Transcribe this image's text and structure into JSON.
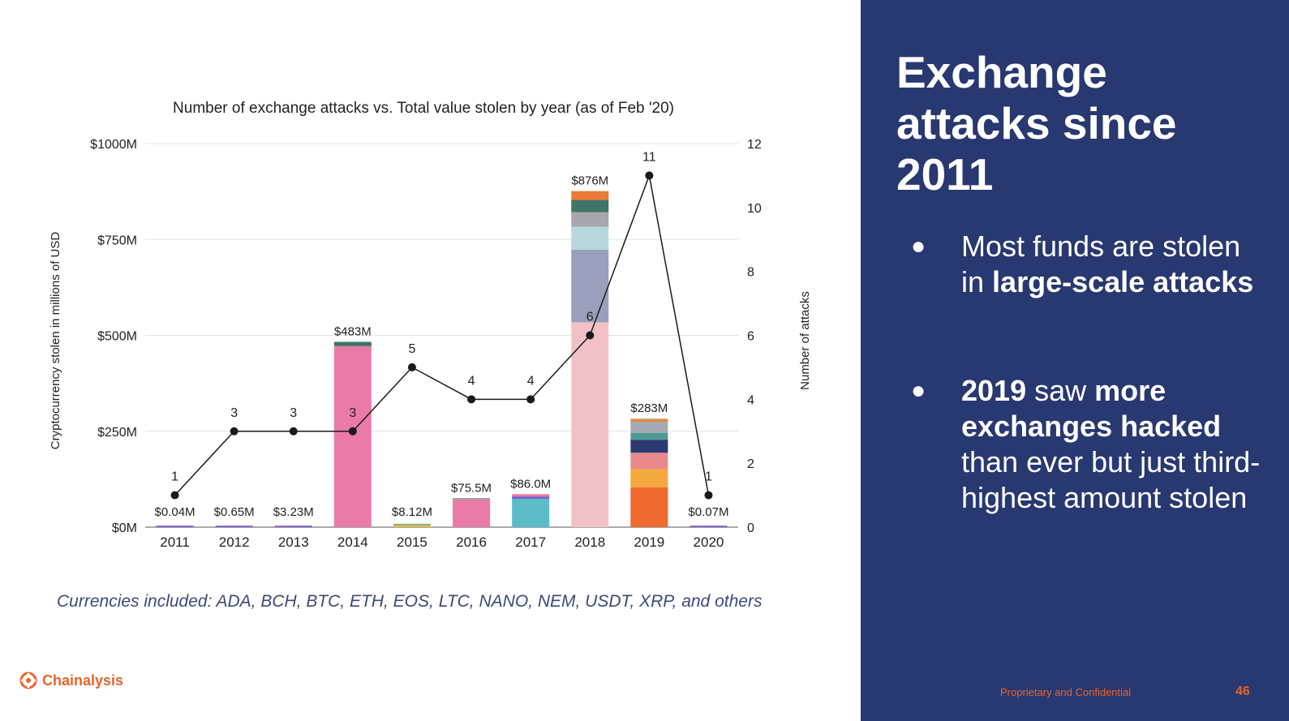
{
  "chart_data": {
    "type": "bar+line",
    "title": "Number of exchange attacks vs. Total value stolen by year (as of Feb '20)",
    "categories": [
      "2011",
      "2012",
      "2013",
      "2014",
      "2015",
      "2016",
      "2017",
      "2018",
      "2019",
      "2020"
    ],
    "left_axis": {
      "label": "Cryptocurrency stolen in millions of USD",
      "range": [
        0,
        1000
      ],
      "ticks": [
        {
          "value": 0,
          "label": "$0M"
        },
        {
          "value": 250,
          "label": "$250M"
        },
        {
          "value": 500,
          "label": "$500M"
        },
        {
          "value": 750,
          "label": "$750M"
        },
        {
          "value": 1000,
          "label": "$1000M"
        }
      ]
    },
    "right_axis": {
      "label": "Number of attacks",
      "range": [
        0,
        12
      ],
      "ticks": [
        0,
        2,
        4,
        6,
        8,
        10,
        12
      ]
    },
    "bar_labels": [
      "$0.04M",
      "$0.65M",
      "$3.23M",
      "$483M",
      "$8.12M",
      "$75.5M",
      "$86.0M",
      "$876M",
      "$283M",
      "$0.07M"
    ],
    "stacks": [
      [
        {
          "value": 0.04,
          "color": "#7a5cc4"
        }
      ],
      [
        {
          "value": 0.65,
          "color": "#7a5cc4"
        }
      ],
      [
        {
          "value": 3.23,
          "color": "#7a5cc4"
        }
      ],
      [
        {
          "value": 472,
          "color": "#ea7aa8"
        },
        {
          "value": 11,
          "color": "#3e7566"
        }
      ],
      [
        {
          "value": 5,
          "color": "#e6b84a"
        },
        {
          "value": 3.12,
          "color": "#7fb07a"
        }
      ],
      [
        {
          "value": 72,
          "color": "#ea7aa8"
        },
        {
          "value": 3.5,
          "color": "#9a9aa0"
        }
      ],
      [
        {
          "value": 74,
          "color": "#5bbcc8"
        },
        {
          "value": 6,
          "color": "#7a5cc4"
        },
        {
          "value": 6,
          "color": "#ea7aa8"
        }
      ],
      [
        {
          "value": 534,
          "color": "#f1c1c6"
        },
        {
          "value": 189,
          "color": "#9aa0bb"
        },
        {
          "value": 60,
          "color": "#b7d7db"
        },
        {
          "value": 38,
          "color": "#a4a7ae"
        },
        {
          "value": 32,
          "color": "#3e7566"
        },
        {
          "value": 23,
          "color": "#ea7a36"
        }
      ],
      [
        {
          "value": 104,
          "color": "#ee6a2e"
        },
        {
          "value": 48,
          "color": "#f2a83c"
        },
        {
          "value": 42,
          "color": "#e9898b"
        },
        {
          "value": 34,
          "color": "#2c3a72"
        },
        {
          "value": 18,
          "color": "#4e9996"
        },
        {
          "value": 29,
          "color": "#a6aab2"
        },
        {
          "value": 4,
          "color": "#ea7a36"
        },
        {
          "value": 4,
          "color": "#c9a25c"
        }
      ],
      [
        {
          "value": 0.07,
          "color": "#7a5cc4"
        }
      ]
    ],
    "attacks": [
      1,
      3,
      3,
      3,
      5,
      4,
      4,
      6,
      11,
      1
    ],
    "colors": {
      "gridline": "#e3e3e3",
      "line": "#1a1a1a",
      "text": "#222222"
    }
  },
  "caption": "Currencies included: ADA, BCH, BTC, ETH, EOS, LTC, NANO, NEM, USDT, XRP, and others",
  "logo": {
    "text": "Chainalysis",
    "icon": "chainalysis-logo-icon"
  },
  "panel": {
    "title": "Exchange attacks since 2011",
    "bullet_char": "●",
    "bullet1": {
      "p1": "Most funds are stolen in",
      "p2": "large-scale attacks"
    },
    "bullet2": {
      "p1": "2019",
      "p2": "saw",
      "p3": "more exchanges hacked",
      "p4": "than ever but just third-highest amount stolen"
    },
    "footer": "Proprietary and Confidential",
    "page_number": "46"
  }
}
